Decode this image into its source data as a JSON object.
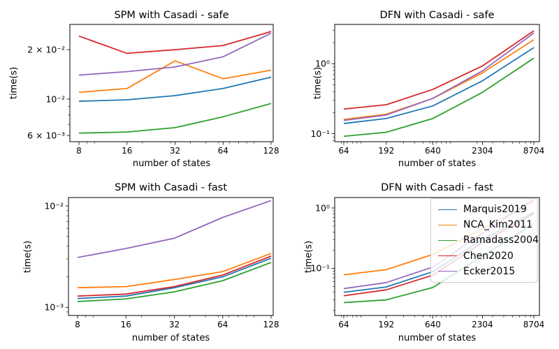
{
  "figure": {
    "background": "#ffffff",
    "description": "2x2 grid of log-log line charts benchmarking battery models"
  },
  "legend": {
    "location": "upper right of DFN fast subplot",
    "entries": [
      {
        "label": "Marquis2019",
        "color": "#1f77b4"
      },
      {
        "label": "NCA_Kim2011",
        "color": "#ff7f0e"
      },
      {
        "label": "Ramadass2004",
        "color": "#2ca02c"
      },
      {
        "label": "Chen2020",
        "color": "#d62728"
      },
      {
        "label": "Ecker2015",
        "color": "#9467bd"
      }
    ]
  },
  "chart_data": [
    {
      "id": "spm-casadi-safe",
      "type": "line",
      "title": "SPM with Casadi - safe",
      "xlabel": "number of states",
      "ylabel": "time(s)",
      "xscale": "log",
      "yscale": "log",
      "x": [
        8,
        16,
        32,
        64,
        128
      ],
      "xticklabels": [
        "8",
        "16",
        "32",
        "64",
        "128"
      ],
      "yticks": [
        0.006,
        0.01,
        0.02
      ],
      "yticklabels": [
        "6 × 10⁻³",
        "10⁻²",
        "2 × 10⁻²"
      ],
      "ylim": [
        0.0055,
        0.0285
      ],
      "series": [
        {
          "name": "Marquis2019",
          "color": "#1f77b4",
          "values": [
            0.0097,
            0.0099,
            0.0105,
            0.0116,
            0.0136
          ]
        },
        {
          "name": "NCA_Kim2011",
          "color": "#ff7f0e",
          "values": [
            0.011,
            0.0116,
            0.0171,
            0.0133,
            0.015
          ]
        },
        {
          "name": "Ramadass2004",
          "color": "#2ca02c",
          "values": [
            0.0062,
            0.0063,
            0.0067,
            0.0078,
            0.0094
          ]
        },
        {
          "name": "Chen2020",
          "color": "#d62728",
          "values": [
            0.0242,
            0.019,
            0.02,
            0.0212,
            0.0258
          ]
        },
        {
          "name": "Ecker2015",
          "color": "#9467bd",
          "values": [
            0.014,
            0.0147,
            0.0157,
            0.0181,
            0.0252
          ]
        }
      ]
    },
    {
      "id": "dfn-casadi-safe",
      "type": "line",
      "title": "DFN with Casadi - safe",
      "xlabel": "number of states",
      "ylabel": "time(s)",
      "xscale": "log",
      "yscale": "log",
      "x": [
        64,
        192,
        640,
        2304,
        8704
      ],
      "xticklabels": [
        "64",
        "192",
        "640",
        "2304",
        "8704"
      ],
      "yticks": [
        0.1,
        1
      ],
      "yticklabels": [
        "10⁻¹",
        "10⁰"
      ],
      "ylim": [
        0.077,
        3.64
      ],
      "series": [
        {
          "name": "Marquis2019",
          "color": "#1f77b4",
          "values": [
            0.14,
            0.165,
            0.25,
            0.57,
            1.7
          ]
        },
        {
          "name": "NCA_Kim2011",
          "color": "#ff7f0e",
          "values": [
            0.16,
            0.19,
            0.32,
            0.74,
            2.2
          ]
        },
        {
          "name": "Ramadass2004",
          "color": "#2ca02c",
          "values": [
            0.092,
            0.105,
            0.165,
            0.39,
            1.2
          ]
        },
        {
          "name": "Chen2020",
          "color": "#d62728",
          "values": [
            0.225,
            0.26,
            0.43,
            0.93,
            2.95
          ]
        },
        {
          "name": "Ecker2015",
          "color": "#9467bd",
          "values": [
            0.155,
            0.185,
            0.32,
            0.79,
            2.75
          ]
        }
      ]
    },
    {
      "id": "spm-casadi-fast",
      "type": "line",
      "title": "SPM with Casadi - fast",
      "xlabel": "number of states",
      "ylabel": "time(s)",
      "xscale": "log",
      "yscale": "log",
      "x": [
        8,
        16,
        32,
        64,
        128
      ],
      "xticklabels": [
        "8",
        "16",
        "32",
        "64",
        "128"
      ],
      "yticks": [
        0.001,
        0.01
      ],
      "yticklabels": [
        "10⁻³",
        "10⁻²"
      ],
      "ylim": [
        0.00083,
        0.0121
      ],
      "series": [
        {
          "name": "Marquis2019",
          "color": "#1f77b4",
          "values": [
            0.00122,
            0.00129,
            0.00156,
            0.002,
            0.00305
          ]
        },
        {
          "name": "NCA_Kim2011",
          "color": "#ff7f0e",
          "values": [
            0.00156,
            0.0016,
            0.00188,
            0.00225,
            0.0034
          ]
        },
        {
          "name": "Ramadass2004",
          "color": "#2ca02c",
          "values": [
            0.00114,
            0.00121,
            0.00142,
            0.00183,
            0.00277
          ]
        },
        {
          "name": "Chen2020",
          "color": "#d62728",
          "values": [
            0.00129,
            0.00135,
            0.0016,
            0.00208,
            0.0032
          ]
        },
        {
          "name": "Ecker2015",
          "color": "#9467bd",
          "values": [
            0.0031,
            0.0038,
            0.0048,
            0.0077,
            0.0113
          ]
        }
      ]
    },
    {
      "id": "dfn-casadi-fast",
      "type": "line",
      "title": "DFN with Casadi - fast",
      "xlabel": "number of states",
      "ylabel": "time(s)",
      "xscale": "log",
      "yscale": "log",
      "x": [
        64,
        192,
        640,
        2304,
        8704
      ],
      "xticklabels": [
        "64",
        "192",
        "640",
        "2304",
        "8704"
      ],
      "yticks": [
        0.1,
        1
      ],
      "yticklabels": [
        "10⁻¹",
        "10⁰"
      ],
      "ylim": [
        0.0165,
        1.49
      ],
      "series": [
        {
          "name": "Marquis2019",
          "color": "#1f77b4",
          "values": [
            0.04,
            0.049,
            0.088,
            0.3,
            0.85
          ]
        },
        {
          "name": "NCA_Kim2011",
          "color": "#ff7f0e",
          "values": [
            0.078,
            0.095,
            0.17,
            0.45,
            1.3
          ]
        },
        {
          "name": "Ramadass2004",
          "color": "#2ca02c",
          "values": [
            0.027,
            0.03,
            0.048,
            0.16,
            0.55
          ]
        },
        {
          "name": "Chen2020",
          "color": "#d62728",
          "values": [
            0.035,
            0.044,
            0.077,
            0.27,
            0.8
          ]
        },
        {
          "name": "Ecker2015",
          "color": "#9467bd",
          "values": [
            0.046,
            0.058,
            0.105,
            0.38,
            1.4
          ]
        }
      ]
    }
  ]
}
